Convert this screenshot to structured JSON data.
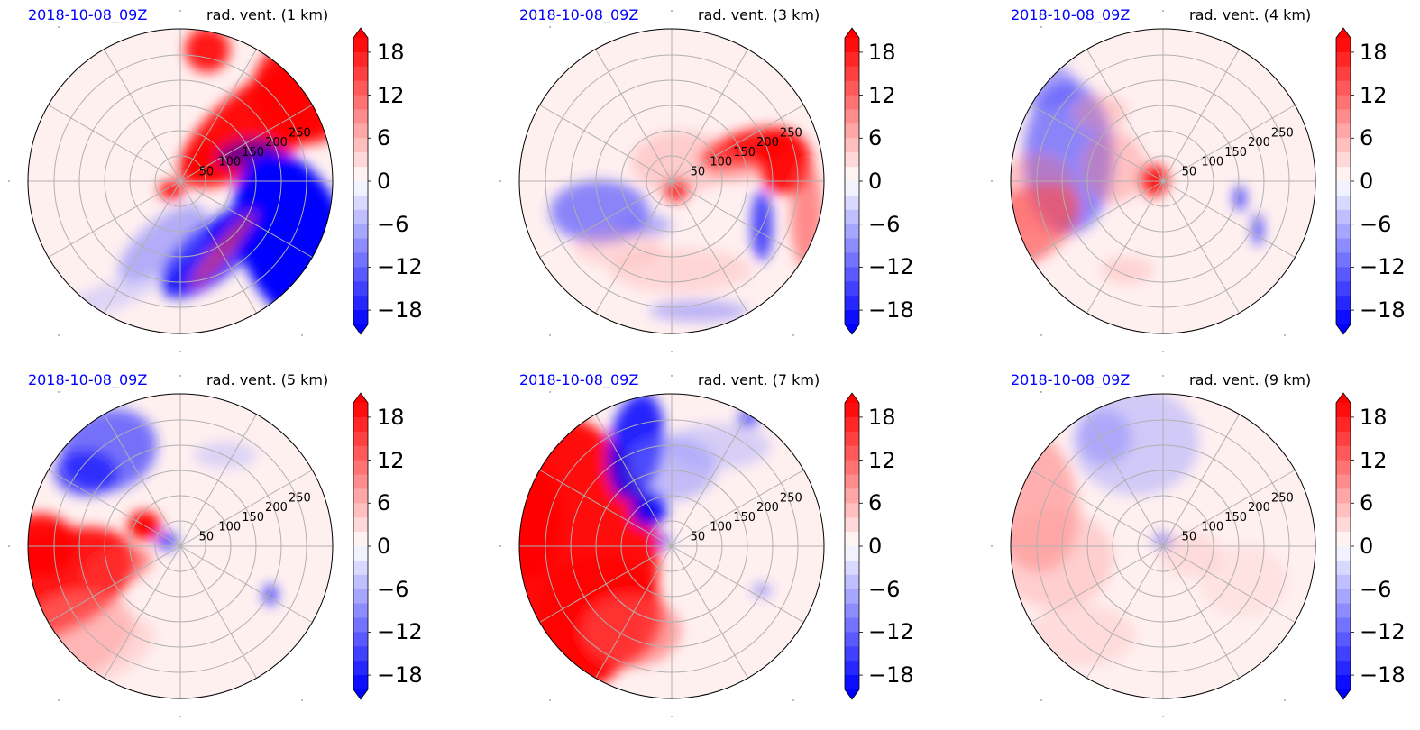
{
  "figure": {
    "panels": [
      {
        "date": "2018-10-08_09Z",
        "var_label": "rad. vent. (1 km)"
      },
      {
        "date": "2018-10-08_09Z",
        "var_label": "rad. vent. (3 km)"
      },
      {
        "date": "2018-10-08_09Z",
        "var_label": "rad. vent. (4 km)"
      },
      {
        "date": "2018-10-08_09Z",
        "var_label": "rad. vent. (5 km)"
      },
      {
        "date": "2018-10-08_09Z",
        "var_label": "rad. vent. (7 km)"
      },
      {
        "date": "2018-10-08_09Z",
        "var_label": "rad. vent. (9 km)"
      }
    ],
    "colorbar_ticks": [
      "18",
      "12",
      "6",
      "0",
      "−6",
      "−12",
      "−18"
    ],
    "radial_ticks": [
      "50",
      "100",
      "150",
      "200",
      "250"
    ],
    "colors": {
      "positive": "#ff0000",
      "negative": "#0000ff",
      "neutral": "#ffffff",
      "date_text": "#0000ff",
      "grid": "#b0b0b0"
    }
  },
  "chart_data": [
    {
      "type": "heatmap",
      "projection": "polar",
      "title": "rad. vent. (1 km)",
      "time": "2018-10-08_09Z",
      "r_ticks": [
        50,
        100,
        150,
        200,
        250
      ],
      "colorbar": {
        "min": -20,
        "max": 20,
        "ticks": [
          -18,
          -12,
          -6,
          0,
          6,
          12,
          18
        ],
        "cmap": "bwr"
      }
    },
    {
      "type": "heatmap",
      "projection": "polar",
      "title": "rad. vent. (3 km)",
      "time": "2018-10-08_09Z",
      "r_ticks": [
        50,
        100,
        150,
        200,
        250
      ],
      "colorbar": {
        "min": -20,
        "max": 20,
        "ticks": [
          -18,
          -12,
          -6,
          0,
          6,
          12,
          18
        ],
        "cmap": "bwr"
      }
    },
    {
      "type": "heatmap",
      "projection": "polar",
      "title": "rad. vent. (4 km)",
      "time": "2018-10-08_09Z",
      "r_ticks": [
        50,
        100,
        150,
        200,
        250
      ],
      "colorbar": {
        "min": -20,
        "max": 20,
        "ticks": [
          -18,
          -12,
          -6,
          0,
          6,
          12,
          18
        ],
        "cmap": "bwr"
      }
    },
    {
      "type": "heatmap",
      "projection": "polar",
      "title": "rad. vent. (5 km)",
      "time": "2018-10-08_09Z",
      "r_ticks": [
        50,
        100,
        150,
        200,
        250
      ],
      "colorbar": {
        "min": -20,
        "max": 20,
        "ticks": [
          -18,
          -12,
          -6,
          0,
          6,
          12,
          18
        ],
        "cmap": "bwr"
      }
    },
    {
      "type": "heatmap",
      "projection": "polar",
      "title": "rad. vent. (7 km)",
      "time": "2018-10-08_09Z",
      "r_ticks": [
        50,
        100,
        150,
        200,
        250
      ],
      "colorbar": {
        "min": -20,
        "max": 20,
        "ticks": [
          -18,
          -12,
          -6,
          0,
          6,
          12,
          18
        ],
        "cmap": "bwr"
      }
    },
    {
      "type": "heatmap",
      "projection": "polar",
      "title": "rad. vent. (9 km)",
      "time": "2018-10-08_09Z",
      "r_ticks": [
        50,
        100,
        150,
        200,
        250
      ],
      "colorbar": {
        "min": -20,
        "max": 20,
        "ticks": [
          -18,
          -12,
          -6,
          0,
          6,
          12,
          18
        ],
        "cmap": "bwr"
      }
    }
  ]
}
